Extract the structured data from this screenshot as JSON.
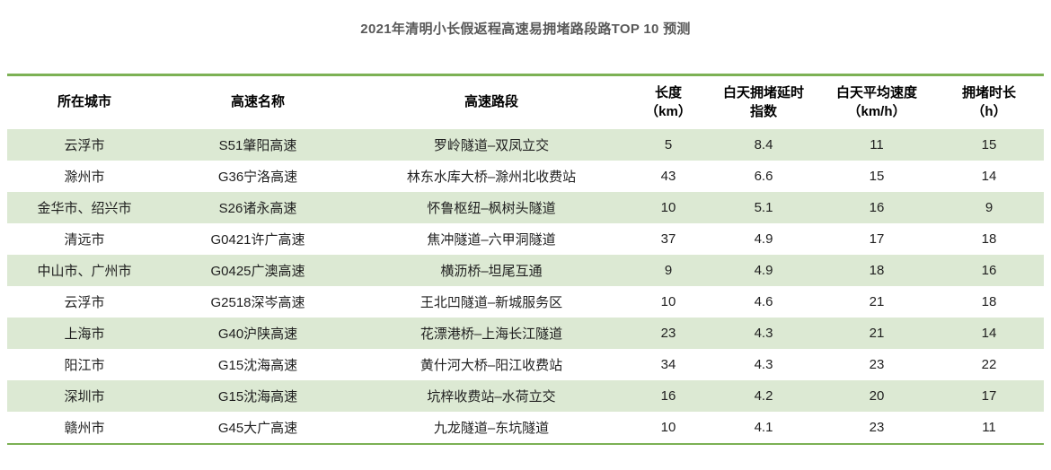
{
  "title": "2021年清明小长假返程高速易拥堵路段路TOP 10 预测",
  "colors": {
    "accent_green_border": "#7cb154",
    "row_band_green": "#dce9d3",
    "title_gray": "#595959",
    "cell_text": "#1f1f1f"
  },
  "table": {
    "columns": [
      {
        "label": "所在城市"
      },
      {
        "label": "高速名称"
      },
      {
        "label": "高速路段"
      },
      {
        "label": "长度\n（km）"
      },
      {
        "label": "白天拥堵延时\n指数"
      },
      {
        "label": "白天平均速度\n（km/h）"
      },
      {
        "label": "拥堵时长\n（h）"
      }
    ],
    "rows": [
      [
        "云浮市",
        "S51肇阳高速",
        "罗岭隧道–双凤立交",
        "5",
        "8.4",
        "11",
        "15"
      ],
      [
        "滁州市",
        "G36宁洛高速",
        "林东水库大桥–滁州北收费站",
        "43",
        "6.6",
        "15",
        "14"
      ],
      [
        "金华市、绍兴市",
        "S26诸永高速",
        "怀鲁枢纽–枫树头隧道",
        "10",
        "5.1",
        "16",
        "9"
      ],
      [
        "清远市",
        "G0421许广高速",
        "焦冲隧道–六甲洞隧道",
        "37",
        "4.9",
        "17",
        "18"
      ],
      [
        "中山市、广州市",
        "G0425广澳高速",
        "横沥桥–坦尾互通",
        "9",
        "4.9",
        "18",
        "16"
      ],
      [
        "云浮市",
        "G2518深岑高速",
        "王北凹隧道–新城服务区",
        "10",
        "4.6",
        "21",
        "18"
      ],
      [
        "上海市",
        "G40沪陕高速",
        "花漂港桥–上海长江隧道",
        "23",
        "4.3",
        "21",
        "14"
      ],
      [
        "阳江市",
        "G15沈海高速",
        "黄什河大桥–阳江收费站",
        "34",
        "4.3",
        "23",
        "22"
      ],
      [
        "深圳市",
        "G15沈海高速",
        "坑梓收费站–水荷立交",
        "16",
        "4.2",
        "20",
        "17"
      ],
      [
        "赣州市",
        "G45大广高速",
        "九龙隧道–东坑隧道",
        "10",
        "4.1",
        "23",
        "11"
      ]
    ]
  },
  "chart_data": {
    "type": "table",
    "title": "2021年清明小长假返程高速易拥堵路段路TOP 10 预测",
    "columns": [
      "所在城市",
      "高速名称",
      "高速路段",
      "长度（km）",
      "白天拥堵延时指数",
      "白天平均速度（km/h）",
      "拥堵时长（h）"
    ],
    "rows": [
      [
        "云浮市",
        "S51肇阳高速",
        "罗岭隧道–双凤立交",
        5,
        8.4,
        11,
        15
      ],
      [
        "滁州市",
        "G36宁洛高速",
        "林东水库大桥–滁州北收费站",
        43,
        6.6,
        15,
        14
      ],
      [
        "金华市、绍兴市",
        "S26诸永高速",
        "怀鲁枢纽–枫树头隧道",
        10,
        5.1,
        16,
        9
      ],
      [
        "清远市",
        "G0421许广高速",
        "焦冲隧道–六甲洞隧道",
        37,
        4.9,
        17,
        18
      ],
      [
        "中山市、广州市",
        "G0425广澳高速",
        "横沥桥–坦尾互通",
        9,
        4.9,
        18,
        16
      ],
      [
        "云浮市",
        "G2518深岑高速",
        "王北凹隧道–新城服务区",
        10,
        4.6,
        21,
        18
      ],
      [
        "上海市",
        "G40沪陕高速",
        "花漂港桥–上海长江隧道",
        23,
        4.3,
        21,
        14
      ],
      [
        "阳江市",
        "G15沈海高速",
        "黄什河大桥–阳江收费站",
        34,
        4.3,
        23,
        22
      ],
      [
        "深圳市",
        "G15沈海高速",
        "坑梓收费站–水荷立交",
        16,
        4.2,
        20,
        17
      ],
      [
        "赣州市",
        "G45大广高速",
        "九龙隧道–东坑隧道",
        10,
        4.1,
        23,
        11
      ]
    ],
    "layout": {
      "banded_rows": true,
      "band_color": "#dce9d3",
      "top_bottom_border_color": "#7cb154",
      "text_align": "center"
    }
  }
}
